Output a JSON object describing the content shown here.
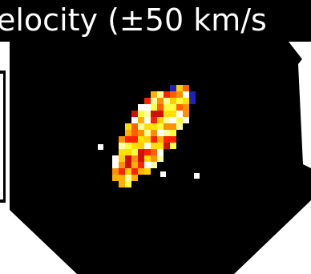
{
  "header": {
    "title": "elocity (±50 km/s"
  }
}
